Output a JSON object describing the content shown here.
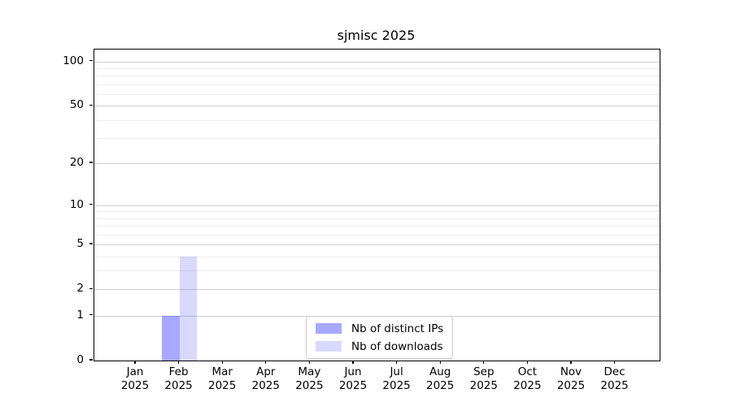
{
  "chart_data": {
    "type": "bar",
    "title": "sjmisc 2025",
    "categories": [
      "Jan",
      "Feb",
      "Mar",
      "Apr",
      "May",
      "Jun",
      "Jul",
      "Aug",
      "Sep",
      "Oct",
      "Nov",
      "Dec"
    ],
    "x_tick_year": "2025",
    "series": [
      {
        "name": "Nb of distinct IPs",
        "color": "#0000ff57",
        "values": [
          0,
          1,
          0,
          0,
          0,
          0,
          0,
          0,
          0,
          0,
          0,
          0
        ]
      },
      {
        "name": "Nb of downloads",
        "color": "#0000ff26",
        "values": [
          0,
          4,
          0,
          0,
          0,
          0,
          0,
          0,
          0,
          0,
          0,
          0
        ]
      }
    ],
    "y_ticks": [
      0,
      1,
      2,
      5,
      10,
      20,
      50,
      100
    ],
    "y_scale": "log1p",
    "ylim": [
      0,
      120
    ],
    "grid": true,
    "legend_position": "lower center"
  },
  "colors": {
    "bar_distinct_ips_blended": "#a9a9f8",
    "bar_downloads_blended": "#dbdbf8",
    "grid_major": "#cfcfcf",
    "grid_minor": "#ececec",
    "spine": "#000000",
    "text": "#000000",
    "legend_border": "#cccccc",
    "background": "#ffffff"
  }
}
